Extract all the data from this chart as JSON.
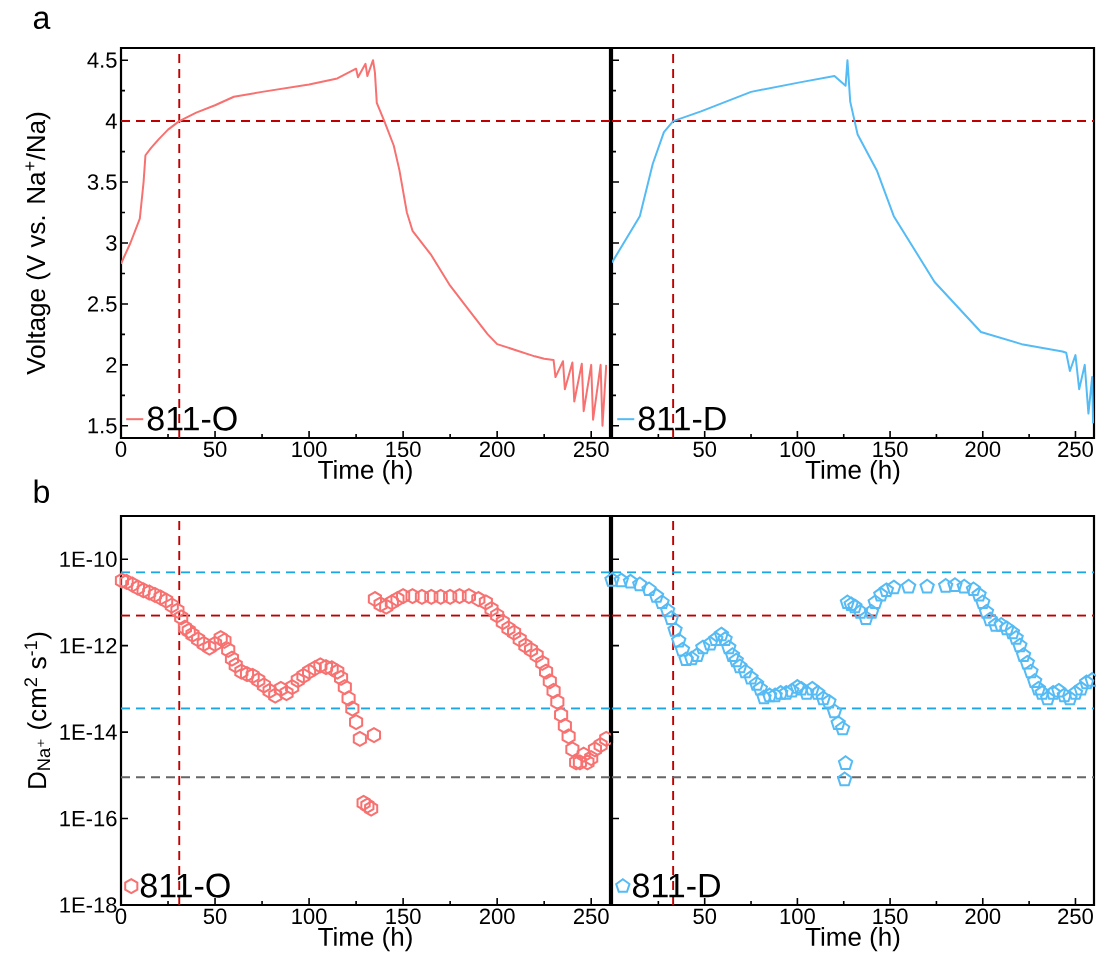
{
  "chart_data": [
    {
      "type": "line",
      "xlabel": "Time (h)",
      "ylabel": "Voltage (V vs. Na$^{+}$/Na)",
      "annotations": [
        "a"
      ],
      "legend": "bottom left",
      "line_style": "solid",
      "marker": "none",
      "xlim": [
        0,
        260
      ],
      "ylim": [
        1.4,
        4.6
      ],
      "xticks": [
        0,
        50,
        100,
        150,
        200,
        250
      ],
      "yticks": [
        1.5,
        2,
        2.5,
        3,
        3.5,
        4,
        4.5
      ],
      "ref_lines": [
        {
          "axis": "x",
          "value": 31,
          "color": "#c00000",
          "line_style": "dashed"
        },
        {
          "axis": "y",
          "value": 4,
          "color": "#c00000",
          "line_style": "dashed"
        }
      ],
      "series": [
        {
          "name": "811-O",
          "color": "#f87171",
          "x": [
            0,
            5,
            10,
            12,
            13,
            16,
            20,
            25,
            31,
            40,
            50,
            60,
            75,
            100,
            115,
            125,
            126,
            130,
            131,
            134,
            135,
            136,
            140,
            145,
            148,
            152,
            155,
            165,
            175,
            185,
            195,
            200,
            210,
            220,
            225,
            230,
            231,
            235,
            236,
            240,
            241,
            245,
            246,
            250,
            251,
            255,
            256,
            258
          ],
          "values": [
            2.83,
            3.0,
            3.2,
            3.5,
            3.72,
            3.78,
            3.85,
            3.93,
            4.0,
            4.07,
            4.13,
            4.2,
            4.24,
            4.3,
            4.35,
            4.43,
            4.36,
            4.47,
            4.37,
            4.5,
            4.4,
            4.15,
            4.0,
            3.8,
            3.6,
            3.25,
            3.1,
            2.9,
            2.65,
            2.45,
            2.25,
            2.17,
            2.12,
            2.07,
            2.05,
            2.04,
            1.9,
            2.03,
            1.8,
            2.02,
            1.7,
            2.01,
            1.62,
            2.0,
            1.55,
            2.0,
            1.5,
            2.0
          ]
        }
      ]
    },
    {
      "type": "line",
      "xlabel": "Time (h)",
      "legend": "bottom left",
      "line_style": "solid",
      "marker": "none",
      "tick_labels": "x",
      "xlim": [
        0,
        260
      ],
      "ylim": [
        1.4,
        4.6
      ],
      "xticks": [
        {
          "value": 0,
          "label": null
        },
        50,
        100,
        150,
        200,
        250
      ],
      "yticks": [
        1.5,
        2,
        2.5,
        3,
        3.5,
        4,
        4.5
      ],
      "ref_lines": [
        {
          "axis": "x",
          "value": 33,
          "color": "#c00000",
          "line_style": "dashed"
        },
        {
          "axis": "y",
          "value": 4,
          "color": "#c00000",
          "line_style": "dashed"
        }
      ],
      "series": [
        {
          "name": "811-D",
          "color": "#55bbf5",
          "x": [
            0,
            15,
            22,
            28,
            33,
            48,
            75,
            102,
            120,
            126,
            127,
            128.5,
            132.5,
            143,
            152,
            174,
            199,
            221,
            243,
            245,
            247,
            250,
            252,
            255,
            257,
            259,
            259.5
          ],
          "values": [
            2.84,
            3.22,
            3.65,
            3.91,
            4.0,
            4.08,
            4.24,
            4.32,
            4.37,
            4.29,
            4.5,
            4.16,
            3.89,
            3.59,
            3.22,
            2.68,
            2.27,
            2.17,
            2.11,
            2.1,
            1.95,
            2.08,
            1.8,
            2.0,
            1.6,
            1.9,
            1.52
          ]
        }
      ]
    },
    {
      "type": "scatter",
      "xlabel": "Time (h)",
      "ylabel": "D$_{Na⁺}$ (cm$^{2}$ s$^{-1}$)",
      "annotations": [
        "b"
      ],
      "legend": "bottom left",
      "log": true,
      "xlim": [
        0,
        260
      ],
      "ylim": [
        1e-18,
        1e-09
      ],
      "xticks": [
        0,
        50,
        100,
        150,
        200,
        250
      ],
      "yticks": [
        {
          "value": 1e-18,
          "label": "1E-18"
        },
        {
          "value": 1e-16,
          "label": "1E-16"
        },
        {
          "value": 1e-14,
          "label": "1E-14"
        },
        {
          "value": 1e-12,
          "label": "1E-12"
        },
        {
          "value": 1e-10,
          "label": "1E-10"
        }
      ],
      "ref_lines": [
        {
          "axis": "x",
          "value": 31,
          "color": "#c00000",
          "line_style": "dashed"
        },
        {
          "axis": "y",
          "value": 5e-11,
          "color": "#1aa7e3",
          "line_style": "dashed"
        },
        {
          "axis": "y",
          "value": 5e-12,
          "color": "#c00000",
          "line_style": "dashed"
        },
        {
          "axis": "y",
          "value": 3.5e-14,
          "color": "#1aa7e3",
          "line_style": "dashed"
        },
        {
          "axis": "y",
          "value": 9e-16,
          "color": "#666666",
          "line_style": "dashed"
        }
      ],
      "series": [
        {
          "name": "811-O",
          "color": "#f87171",
          "x": [
            0.5,
            3,
            6,
            9,
            12,
            15,
            18,
            21,
            24,
            27,
            30,
            32,
            34,
            36,
            38,
            41,
            44,
            47,
            50,
            53,
            55,
            57,
            59,
            61,
            64,
            67,
            70,
            73,
            76,
            79,
            82,
            85,
            88,
            91,
            94,
            97,
            100,
            103,
            106,
            109,
            112,
            115,
            117,
            119,
            121,
            123,
            125,
            127,
            129,
            131,
            133,
            134.5,
            135,
            138,
            141,
            144,
            147,
            150,
            155,
            160,
            165,
            170,
            175,
            180,
            185,
            190,
            194,
            197,
            200,
            203,
            206,
            209,
            212,
            215,
            218,
            221,
            224,
            226,
            228,
            230,
            232,
            234,
            236,
            238,
            240,
            242,
            244,
            246,
            248,
            250,
            252,
            255,
            258
          ],
          "values": [
            3.2e-11,
            3e-11,
            2.6e-11,
            2.2e-11,
            1.9e-11,
            1.7e-11,
            1.5e-11,
            1.3e-11,
            1.1e-11,
            8.5e-12,
            6.5e-12,
            4.5e-12,
            2.6e-12,
            2.2e-12,
            1.8e-12,
            1.4e-12,
            1.1e-12,
            9e-13,
            1.1e-12,
            1.5e-12,
            1.3e-12,
            8e-13,
            5e-13,
            3.5e-13,
            2.5e-13,
            2.2e-13,
            2e-13,
            1.6e-13,
            1.2e-13,
            9e-14,
            7e-14,
            1e-13,
            8e-14,
            1.1e-13,
            1.6e-13,
            2e-13,
            2.5e-13,
            3e-13,
            3.5e-13,
            3.2e-13,
            3e-13,
            2.5e-13,
            1.8e-13,
            1.1e-13,
            6e-14,
            3.5e-14,
            1.7e-14,
            7e-15,
            2.3e-16,
            2e-16,
            1.7e-16,
            8.5e-15,
            1.2e-11,
            9e-12,
            8e-12,
            1e-11,
            1.2e-11,
            1.4e-11,
            1.4e-11,
            1.35e-11,
            1.35e-11,
            1.35e-11,
            1.35e-11,
            1.4e-11,
            1.4e-11,
            1.2e-11,
            1e-11,
            7e-12,
            5e-12,
            3.5e-12,
            2.5e-12,
            2e-12,
            1.4e-12,
            1e-12,
            8e-13,
            6e-13,
            4e-13,
            2.5e-13,
            1.5e-13,
            9e-14,
            5e-14,
            2.5e-14,
            1.4e-14,
            8e-15,
            4e-15,
            2e-15,
            2e-15,
            3e-15,
            2e-15,
            2.5e-15,
            4e-15,
            5e-15,
            7e-15
          ]
        }
      ]
    },
    {
      "type": "scatter",
      "xlabel": "Time (h)",
      "legend": "bottom left",
      "log": true,
      "tick_labels": "x",
      "xlim": [
        0,
        260
      ],
      "ylim": [
        1e-18,
        1e-09
      ],
      "xticks": [
        {
          "value": 0,
          "label": null
        },
        50,
        100,
        150,
        200,
        250
      ],
      "yticks": [
        {
          "value": 1e-18,
          "label": null
        },
        {
          "value": 1e-16,
          "label": null
        },
        {
          "value": 1e-14,
          "label": null
        },
        {
          "value": 1e-12,
          "label": null
        },
        {
          "value": 1e-10,
          "label": null
        }
      ],
      "ref_lines": [
        {
          "axis": "x",
          "value": 33,
          "color": "#c00000",
          "line_style": "dashed"
        },
        {
          "axis": "y",
          "value": 5e-11,
          "color": "#1aa7e3",
          "line_style": "dashed"
        },
        {
          "axis": "y",
          "value": 5e-12,
          "color": "#c00000",
          "line_style": "dashed"
        },
        {
          "axis": "y",
          "value": 3.5e-14,
          "color": "#1aa7e3",
          "line_style": "dashed"
        },
        {
          "axis": "y",
          "value": 9e-16,
          "color": "#666666",
          "line_style": "dashed"
        }
      ],
      "series": [
        {
          "name": "811-D",
          "color": "#55bbf5",
          "x": [
            0,
            5,
            10,
            15,
            20,
            24,
            27,
            30,
            32,
            34,
            36,
            38,
            40,
            43,
            46,
            49,
            53,
            56,
            59,
            61,
            63,
            65,
            67,
            69,
            72,
            75,
            78,
            80,
            82,
            85,
            88,
            91,
            94,
            97,
            100,
            102,
            105,
            108,
            111,
            114,
            117,
            120,
            122,
            124.4,
            125.5,
            126,
            127,
            129,
            131,
            134,
            137,
            140,
            142,
            145,
            148,
            152,
            160,
            170,
            180,
            185,
            190,
            195,
            198,
            200,
            202,
            204,
            207,
            210,
            213,
            216,
            218,
            220,
            222,
            224,
            226,
            228,
            230,
            232,
            235,
            238,
            241,
            244,
            247,
            250,
            253,
            256,
            259
          ],
          "values": [
            3.3e-11,
            3.2e-11,
            3e-11,
            2.6e-11,
            2e-11,
            1.4e-11,
            1e-11,
            6.5e-12,
            4.3e-12,
            2.3e-12,
            1.3e-12,
            8e-13,
            4.8e-13,
            5e-13,
            6e-13,
            9e-13,
            1.1e-12,
            1.4e-12,
            1.8e-12,
            1.4e-12,
            9e-13,
            6e-13,
            4.5e-13,
            3.3e-13,
            2.5e-13,
            1.8e-13,
            1.3e-13,
            1e-13,
            6.3e-14,
            7e-14,
            7e-14,
            8e-14,
            8e-14,
            9e-14,
            1.1e-13,
            1e-13,
            8e-14,
            1e-13,
            8e-14,
            6e-14,
            5e-14,
            3e-14,
            1.6e-14,
            1.2e-14,
            8e-16,
            1.9e-15,
            1e-11,
            9e-12,
            8e-12,
            6e-12,
            4.3e-12,
            6e-12,
            1e-11,
            1.5e-11,
            1.9e-11,
            2.2e-11,
            2.3e-11,
            2.3e-11,
            2.4e-11,
            2.5e-11,
            2.3e-11,
            2e-11,
            1.5e-11,
            1e-11,
            6e-12,
            4e-12,
            3e-12,
            3e-12,
            2.5e-12,
            2e-12,
            1.5e-12,
            1e-12,
            6e-13,
            4e-13,
            2.5e-13,
            1.5e-13,
            1e-13,
            8e-14,
            6e-14,
            8e-14,
            9e-14,
            7e-14,
            6e-14,
            8e-14,
            1e-13,
            1.4e-13,
            1.6e-13
          ]
        }
      ]
    }
  ]
}
